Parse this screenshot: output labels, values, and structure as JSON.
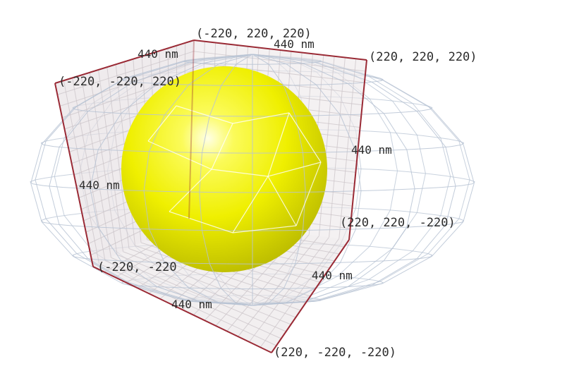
{
  "corner_labels": {
    "top_back_left": "(-220, 220, 220)",
    "top_back_right": "(220, 220, 220)",
    "top_front_left": "(-220, -220, 220)",
    "right_mid": "(220, 220, -220)",
    "bottom_left": "(-220, -220",
    "bottom_front": "(220, -220, -220)"
  },
  "dimension_labels": {
    "top_left": "440 nm",
    "top_right": "440 nm",
    "left": "440 nm",
    "right_upper": "440 nm",
    "right_lower": "440 nm",
    "bottom": "440 nm"
  },
  "colors": {
    "sphere": "#f2f200",
    "box_edge": "#9a2a35",
    "plane_fill": "#e7e2e5",
    "mesh": "#b7c3d3",
    "grid": "#c9c2c6"
  }
}
